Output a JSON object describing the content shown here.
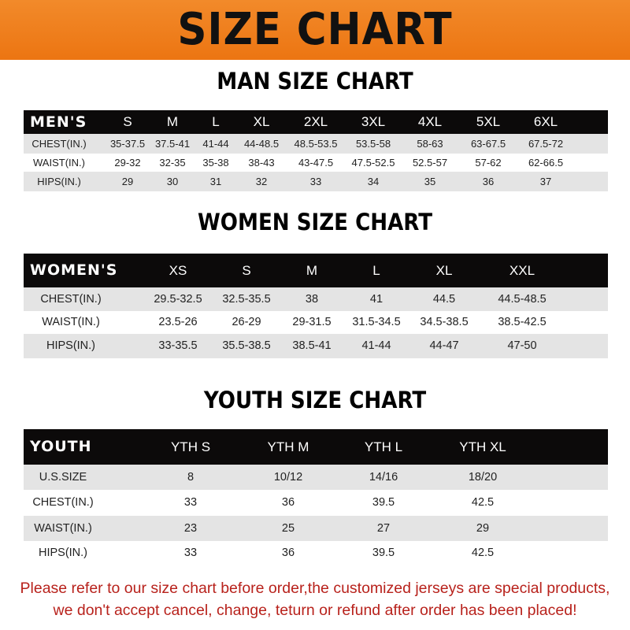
{
  "title": "SIZE CHART",
  "accent_color": "#ec7512",
  "men": {
    "title": "MAN SIZE CHART",
    "header": [
      "MEN'S",
      "S",
      "M",
      "L",
      "XL",
      "2XL",
      "3XL",
      "4XL",
      "5XL",
      "6XL"
    ],
    "rows": [
      [
        "CHEST(IN.)",
        "35-37.5",
        "37.5-41",
        "41-44",
        "44-48.5",
        "48.5-53.5",
        "53.5-58",
        "58-63",
        "63-67.5",
        "67.5-72"
      ],
      [
        "WAIST(IN.)",
        "29-32",
        "32-35",
        "35-38",
        "38-43",
        "43-47.5",
        "47.5-52.5",
        "52.5-57",
        "57-62",
        "62-66.5"
      ],
      [
        "HIPS(IN.)",
        "29",
        "30",
        "31",
        "32",
        "33",
        "34",
        "35",
        "36",
        "37"
      ]
    ]
  },
  "women": {
    "title": "WOMEN SIZE CHART",
    "header": [
      "WOMEN'S",
      "XS",
      "S",
      "M",
      "L",
      "XL",
      "XXL"
    ],
    "rows": [
      [
        "CHEST(IN.)",
        "29.5-32.5",
        "32.5-35.5",
        "38",
        "41",
        "44.5",
        "44.5-48.5"
      ],
      [
        "WAIST(IN.)",
        "23.5-26",
        "26-29",
        "29-31.5",
        "31.5-34.5",
        "34.5-38.5",
        "38.5-42.5"
      ],
      [
        "HIPS(IN.)",
        "33-35.5",
        "35.5-38.5",
        "38.5-41",
        "41-44",
        "44-47",
        "47-50"
      ]
    ]
  },
  "youth": {
    "title": "YOUTH SIZE CHART",
    "header": [
      "YOUTH",
      "YTH S",
      "YTH M",
      "YTH L",
      "YTH XL"
    ],
    "rows": [
      [
        "U.S.SIZE",
        "8",
        "10/12",
        "14/16",
        "18/20"
      ],
      [
        "CHEST(IN.)",
        "33",
        "36",
        "39.5",
        "42.5"
      ],
      [
        "WAIST(IN.)",
        "23",
        "25",
        "27",
        "29"
      ],
      [
        "HIPS(IN.)",
        "33",
        "36",
        "39.5",
        "42.5"
      ]
    ]
  },
  "notice": {
    "line1": "Please refer to our size chart before order,the customized jerseys are special products,",
    "line2": "we don't accept cancel, change, teturn or refund after order has been placed!"
  }
}
